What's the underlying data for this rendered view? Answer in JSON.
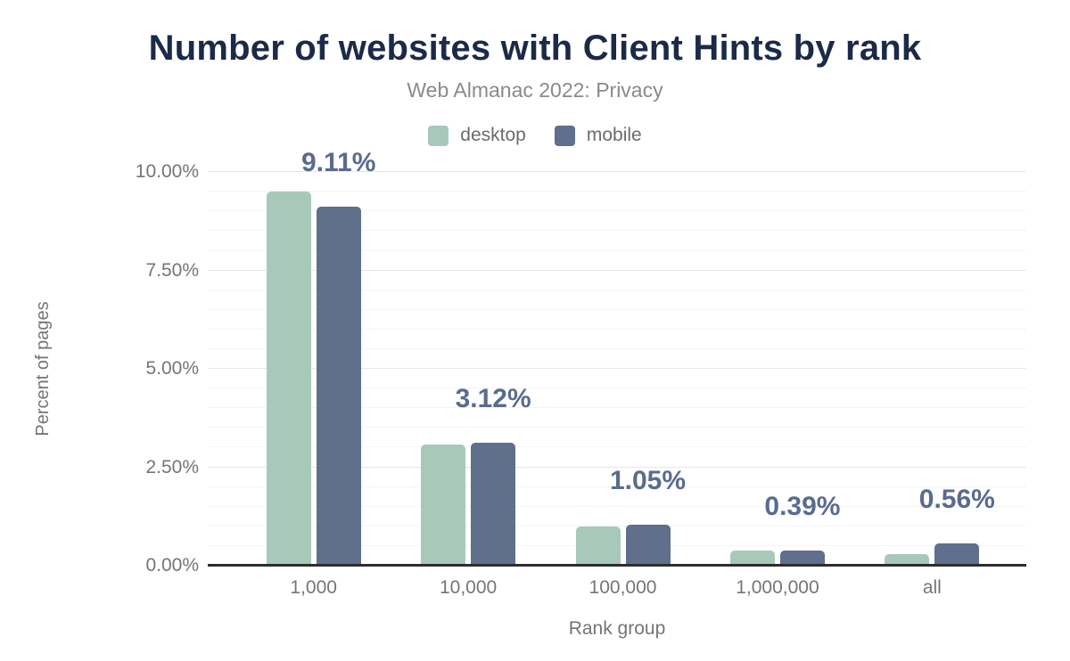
{
  "title": "Number of websites with Client Hints by rank",
  "subtitle": "Web Almanac 2022: Privacy",
  "legend": {
    "items": [
      {
        "label": "desktop",
        "color": "#a8c9ba"
      },
      {
        "label": "mobile",
        "color": "#5f6f8c"
      }
    ]
  },
  "colors": {
    "title": "#1c2a49",
    "subtitle": "#8a8a8a",
    "axis_text": "#757575",
    "data_label": "#5a6b8f",
    "axis_line": "#2d2d2d",
    "grid_major": "#e6e6e6",
    "grid_minor": "#f4f4f4",
    "background": "#ffffff"
  },
  "chart_data": {
    "type": "bar",
    "title": "Number of websites with Client Hints by rank",
    "subtitle": "Web Almanac 2022: Privacy",
    "categories": [
      "1,000",
      "10,000",
      "100,000",
      "1,000,000",
      "all"
    ],
    "series": [
      {
        "name": "desktop",
        "color": "#a8c9ba",
        "values": [
          9.5,
          3.08,
          1.0,
          0.38,
          0.3
        ]
      },
      {
        "name": "mobile",
        "color": "#5f6f8c",
        "values": [
          9.11,
          3.12,
          1.05,
          0.39,
          0.56
        ]
      }
    ],
    "data_labels": [
      "9.11%",
      "3.12%",
      "1.05%",
      "0.39%",
      "0.56%"
    ],
    "data_labels_over_series": "mobile",
    "xlabel": "Rank group",
    "ylabel": "Percent of pages",
    "y_ticks": [
      "0.00%",
      "2.50%",
      "5.00%",
      "7.50%",
      "10.00%"
    ],
    "y_tick_values": [
      0,
      2.5,
      5,
      7.5,
      10
    ],
    "ylim": [
      0,
      10
    ],
    "grid": {
      "major_step": 2.5,
      "minor_step": 0.5,
      "visible": true
    },
    "legend_position": "top-center"
  }
}
